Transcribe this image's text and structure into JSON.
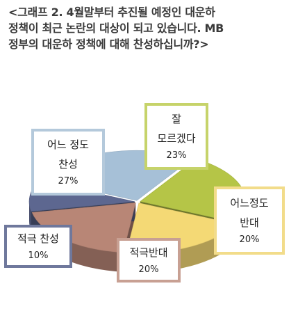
{
  "title_lines": [
    "<그래프 2.  4월말부터 추진될 예정인 대운하",
    "정책이 최근 논란의 대상이 되고 있습니다. MB",
    "정부의 대운하 정책에 대해 찬성하십니까?>"
  ],
  "chart_data": {
    "type": "pie",
    "slices": [
      {
        "name_lines": [
          "잘",
          "모르겠다"
        ],
        "pct_label": "23%",
        "value": 23,
        "color": "#b5c547"
      },
      {
        "name_lines": [
          "어느정도",
          "반대"
        ],
        "pct_label": "20%",
        "value": 20,
        "color": "#f4d975"
      },
      {
        "name_lines": [
          "적극반대"
        ],
        "pct_label": "20%",
        "value": 20,
        "color": "#b88676"
      },
      {
        "name_lines": [
          "적극 찬성"
        ],
        "pct_label": "10%",
        "value": 10,
        "color": "#5d6790"
      },
      {
        "name_lines": [
          "어느 정도",
          "찬성"
        ],
        "pct_label": "27%",
        "value": 27,
        "color": "#a6c0d7"
      }
    ]
  }
}
